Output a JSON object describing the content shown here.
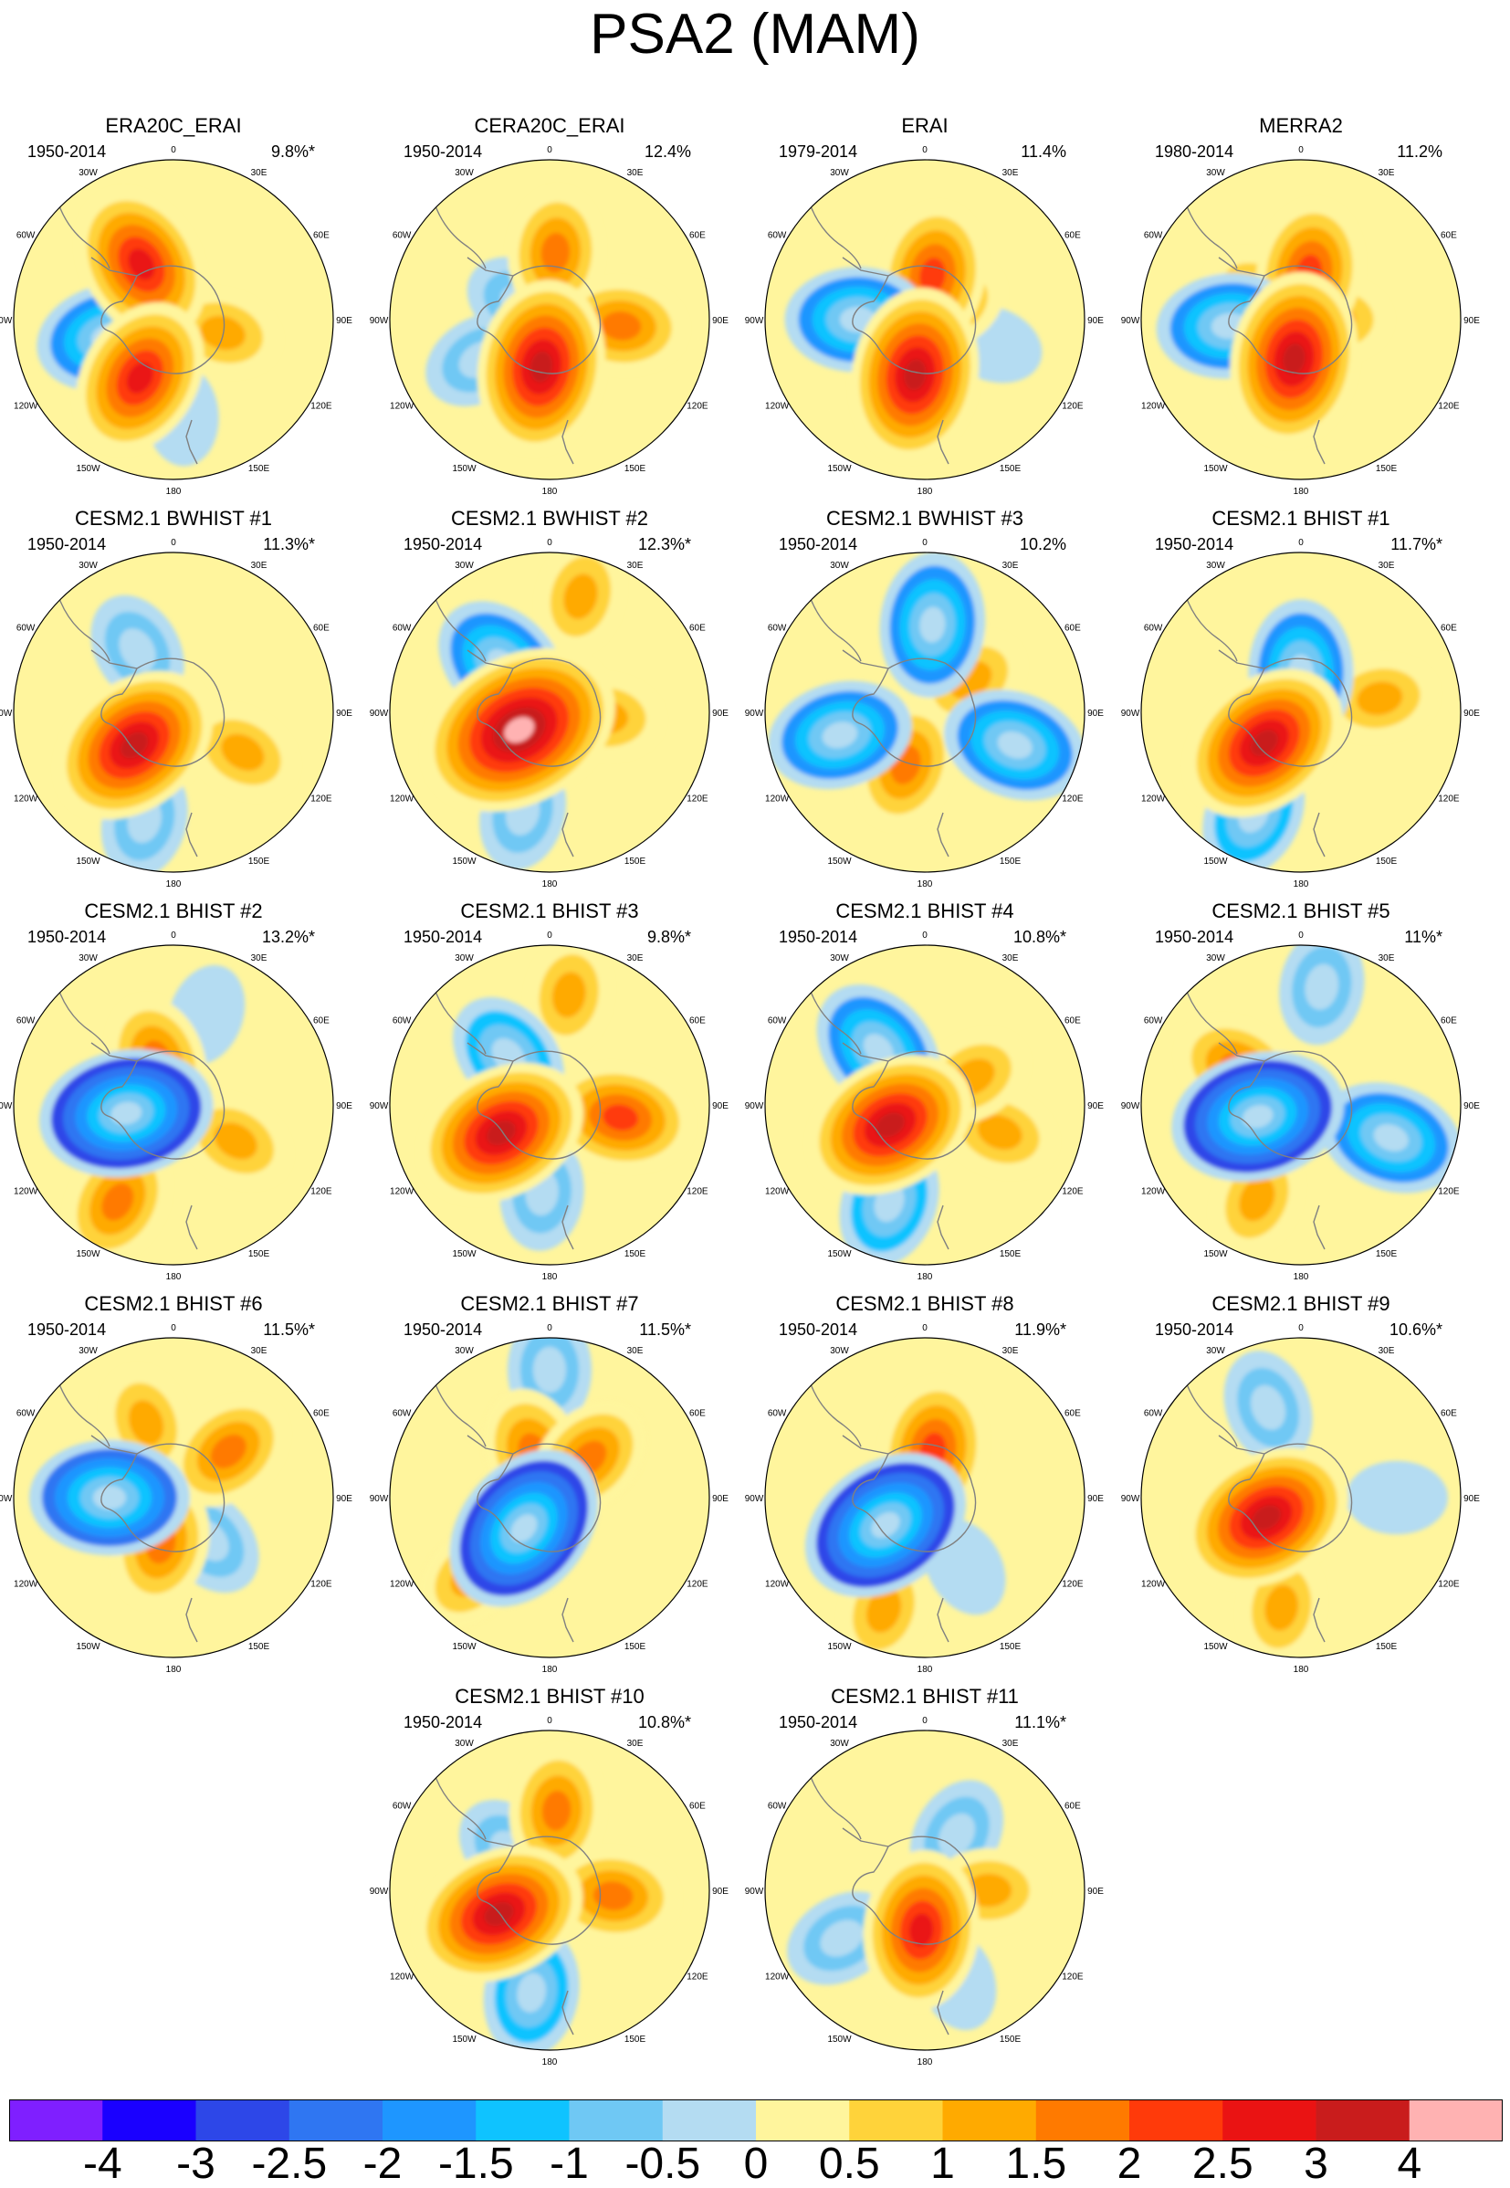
{
  "title": "PSA2 (MAM)",
  "colorbar": {
    "colors": [
      "#7f1fff",
      "#1a00ff",
      "#2d47e8",
      "#2f76f2",
      "#1e96ff",
      "#0fc3ff",
      "#6fc8f4",
      "#b4dcf2",
      "#fff59d",
      "#ffd33a",
      "#ffaa00",
      "#ff7a00",
      "#ff3a0a",
      "#ea1313",
      "#c91c1c",
      "#ffb2b2"
    ],
    "labels": [
      "-4",
      "-3",
      "-2.5",
      "-2",
      "-1.5",
      "-1",
      "-0.5",
      "0",
      "0.5",
      "1",
      "1.5",
      "2",
      "2.5",
      "3",
      "4"
    ]
  },
  "longitude_labels": [
    "0",
    "30E",
    "60E",
    "90E",
    "120E",
    "150E",
    "180",
    "150W",
    "120W",
    "90W",
    "60W",
    "30W"
  ],
  "panels": [
    {
      "title": "ERA20C_ERAI",
      "period": "1950-2014",
      "variance": "9.8%*",
      "anomalies": [
        {
          "lon": -30,
          "r": 0.4,
          "v": 2.5
        },
        {
          "lon": -105,
          "r": 0.42,
          "v": -2.0
        },
        {
          "lon": -150,
          "r": 0.42,
          "v": 2.5
        },
        {
          "lon": 105,
          "r": 0.32,
          "v": 1.0
        },
        {
          "lon": 175,
          "r": 0.6,
          "v": -0.5
        }
      ]
    },
    {
      "title": "CERA20C_ERAI",
      "period": "1950-2014",
      "variance": "12.4%",
      "anomalies": [
        {
          "lon": 5,
          "r": 0.42,
          "v": 1.5
        },
        {
          "lon": -170,
          "r": 0.3,
          "v": 3.0
        },
        {
          "lon": -120,
          "r": 0.5,
          "v": -1.0
        },
        {
          "lon": 95,
          "r": 0.45,
          "v": 1.5
        },
        {
          "lon": -60,
          "r": 0.2,
          "v": -1.0
        }
      ]
    },
    {
      "title": "ERAI",
      "period": "1979-2014",
      "variance": "11.4%",
      "anomalies": [
        {
          "lon": 10,
          "r": 0.28,
          "v": 2.0
        },
        {
          "lon": -90,
          "r": 0.42,
          "v": -2.0
        },
        {
          "lon": -170,
          "r": 0.35,
          "v": 3.0
        },
        {
          "lon": 110,
          "r": 0.45,
          "v": -0.5
        },
        {
          "lon": 60,
          "r": 0.18,
          "v": 1.0
        }
      ]
    },
    {
      "title": "MERRA2",
      "period": "1980-2014",
      "variance": "11.2%",
      "anomalies": [
        {
          "lon": 10,
          "r": 0.3,
          "v": 2.0
        },
        {
          "lon": -95,
          "r": 0.45,
          "v": -2.0
        },
        {
          "lon": -170,
          "r": 0.25,
          "v": 3.0
        },
        {
          "lon": 90,
          "r": 0.2,
          "v": 1.0
        },
        {
          "lon": -60,
          "r": 0.3,
          "v": 1.0
        }
      ]
    },
    {
      "title": "CESM2.1 BWHIST #1",
      "period": "1950-2014",
      "variance": "11.3%*",
      "anomalies": [
        {
          "lon": -130,
          "r": 0.32,
          "v": 3.0
        },
        {
          "lon": -30,
          "r": 0.45,
          "v": -1.0
        },
        {
          "lon": 120,
          "r": 0.5,
          "v": 1.0
        },
        {
          "lon": -165,
          "r": 0.7,
          "v": -1.0
        }
      ]
    },
    {
      "title": "CESM2.1 BWHIST #2",
      "period": "1950-2014",
      "variance": "12.3%*",
      "anomalies": [
        {
          "lon": -120,
          "r": 0.22,
          "v": 4.0
        },
        {
          "lon": -45,
          "r": 0.42,
          "v": -2.0
        },
        {
          "lon": 15,
          "r": 0.75,
          "v": 1.0
        },
        {
          "lon": -165,
          "r": 0.65,
          "v": -1.0
        },
        {
          "lon": 95,
          "r": 0.35,
          "v": 1.0
        }
      ]
    },
    {
      "title": "CESM2.1 BWHIST #3",
      "period": "1950-2014",
      "variance": "10.2%",
      "anomalies": [
        {
          "lon": 5,
          "r": 0.55,
          "v": -2.0
        },
        {
          "lon": -105,
          "r": 0.55,
          "v": -2.0
        },
        {
          "lon": 110,
          "r": 0.6,
          "v": -2.0
        },
        {
          "lon": -160,
          "r": 0.35,
          "v": 1.5
        },
        {
          "lon": 55,
          "r": 0.35,
          "v": 1.0
        }
      ]
    },
    {
      "title": "CESM2.1 BHIST #1",
      "period": "1950-2014",
      "variance": "11.7%*",
      "anomalies": [
        {
          "lon": -130,
          "r": 0.3,
          "v": 3.0
        },
        {
          "lon": 0,
          "r": 0.25,
          "v": -2.0
        },
        {
          "lon": -155,
          "r": 0.7,
          "v": -1.5
        },
        {
          "lon": 80,
          "r": 0.5,
          "v": 1.0
        }
      ]
    },
    {
      "title": "CESM2.1 BHIST #2",
      "period": "1950-2014",
      "variance": "13.2%*",
      "anomalies": [
        {
          "lon": -100,
          "r": 0.3,
          "v": -3.0
        },
        {
          "lon": -150,
          "r": 0.7,
          "v": 1.5
        },
        {
          "lon": -20,
          "r": 0.3,
          "v": 1.5
        },
        {
          "lon": 20,
          "r": 0.6,
          "v": -0.5
        },
        {
          "lon": 120,
          "r": 0.45,
          "v": 1.0
        }
      ]
    },
    {
      "title": "CESM2.1 BHIST #3",
      "period": "1950-2014",
      "variance": "9.8%*",
      "anomalies": [
        {
          "lon": -120,
          "r": 0.35,
          "v": 3.0
        },
        {
          "lon": 100,
          "r": 0.45,
          "v": 2.0
        },
        {
          "lon": -40,
          "r": 0.4,
          "v": -1.5
        },
        {
          "lon": 10,
          "r": 0.7,
          "v": 1.0
        },
        {
          "lon": -175,
          "r": 0.55,
          "v": -1.0
        }
      ]
    },
    {
      "title": "CESM2.1 BHIST #4",
      "period": "1950-2014",
      "variance": "10.8%*",
      "anomalies": [
        {
          "lon": -120,
          "r": 0.25,
          "v": 3.0
        },
        {
          "lon": -40,
          "r": 0.45,
          "v": -2.0
        },
        {
          "lon": -160,
          "r": 0.65,
          "v": -1.5
        },
        {
          "lon": 110,
          "r": 0.5,
          "v": 1.0
        },
        {
          "lon": 60,
          "r": 0.35,
          "v": 1.0
        }
      ]
    },
    {
      "title": "CESM2.1 BHIST #5",
      "period": "1950-2014",
      "variance": "11%*",
      "anomalies": [
        {
          "lon": -105,
          "r": 0.28,
          "v": -3.0
        },
        {
          "lon": -60,
          "r": 0.45,
          "v": 1.5
        },
        {
          "lon": 110,
          "r": 0.6,
          "v": -2.0
        },
        {
          "lon": -155,
          "r": 0.65,
          "v": 1.0
        },
        {
          "lon": 10,
          "r": 0.75,
          "v": -1.0
        }
      ]
    },
    {
      "title": "CESM2.1 BHIST #6",
      "period": "1950-2014",
      "variance": "11.5%*",
      "anomalies": [
        {
          "lon": -90,
          "r": 0.4,
          "v": -2.5
        },
        {
          "lon": -165,
          "r": 0.3,
          "v": 1.5
        },
        {
          "lon": 50,
          "r": 0.45,
          "v": 1.5
        },
        {
          "lon": 140,
          "r": 0.35,
          "v": -1.0
        },
        {
          "lon": -20,
          "r": 0.5,
          "v": 1.0
        }
      ]
    },
    {
      "title": "CESM2.1 BHIST #7",
      "period": "1950-2014",
      "variance": "11.5%*",
      "anomalies": [
        {
          "lon": -140,
          "r": 0.25,
          "v": -3.0
        },
        {
          "lon": -20,
          "r": 0.3,
          "v": 1.5
        },
        {
          "lon": 45,
          "r": 0.35,
          "v": 1.5
        },
        {
          "lon": 0,
          "r": 0.8,
          "v": -1.0
        },
        {
          "lon": -135,
          "r": 0.7,
          "v": 1.0
        }
      ]
    },
    {
      "title": "CESM2.1 BHIST #8",
      "period": "1950-2014",
      "variance": "11.9%*",
      "anomalies": [
        {
          "lon": -125,
          "r": 0.3,
          "v": -3.0
        },
        {
          "lon": 10,
          "r": 0.3,
          "v": 2.0
        },
        {
          "lon": -160,
          "r": 0.75,
          "v": 1.0
        },
        {
          "lon": 150,
          "r": 0.5,
          "v": -0.5
        }
      ]
    },
    {
      "title": "CESM2.1 BHIST #9",
      "period": "1950-2014",
      "variance": "10.6%*",
      "anomalies": [
        {
          "lon": -120,
          "r": 0.25,
          "v": 3.0
        },
        {
          "lon": -20,
          "r": 0.6,
          "v": -1.0
        },
        {
          "lon": 90,
          "r": 0.6,
          "v": -0.5
        },
        {
          "lon": -170,
          "r": 0.7,
          "v": 1.0
        }
      ]
    },
    {
      "title": "CESM2.1 BHIST #10",
      "period": "1950-2014",
      "variance": "10.8%*",
      "anomalies": [
        {
          "lon": -115,
          "r": 0.35,
          "v": 3.0
        },
        {
          "lon": 5,
          "r": 0.5,
          "v": 1.5
        },
        {
          "lon": 95,
          "r": 0.4,
          "v": 1.5
        },
        {
          "lon": -170,
          "r": 0.65,
          "v": -1.5
        },
        {
          "lon": -45,
          "r": 0.35,
          "v": -1.0
        }
      ]
    },
    {
      "title": "CESM2.1 BHIST #11",
      "period": "1950-2014",
      "variance": "11.1%*",
      "anomalies": [
        {
          "lon": -175,
          "r": 0.25,
          "v": 2.5
        },
        {
          "lon": 30,
          "r": 0.4,
          "v": -1.0
        },
        {
          "lon": 90,
          "r": 0.4,
          "v": 1.0
        },
        {
          "lon": -120,
          "r": 0.6,
          "v": -1.0
        },
        {
          "lon": 160,
          "r": 0.6,
          "v": -0.5
        }
      ]
    }
  ]
}
